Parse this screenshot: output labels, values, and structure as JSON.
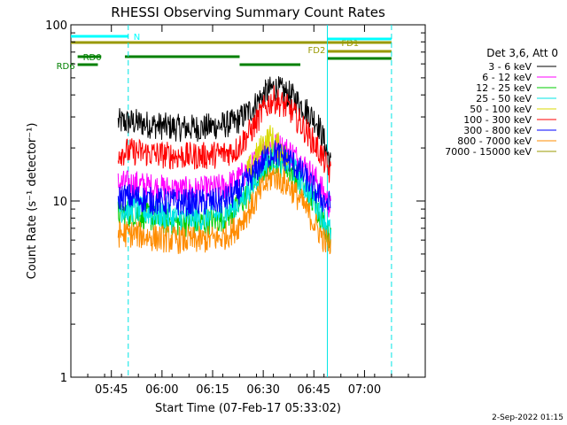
{
  "chart_data": {
    "type": "line",
    "title": "RHESSI Observing Summary Count Rates",
    "xlabel": "Start Time (07-Feb-17 05:33:02)",
    "ylabel": "Count Rate (s⁻¹ detector⁻¹)",
    "yscale": "log",
    "ylim": [
      1,
      100
    ],
    "xlim": [
      "05:33",
      "07:18"
    ],
    "x_ticks": [
      "05:45",
      "06:00",
      "06:15",
      "06:30",
      "06:45",
      "07:00"
    ],
    "y_ticks": [
      "1",
      "10",
      "100"
    ],
    "legend_title": "Det 3,6, Att 0",
    "legend_position": "right",
    "footer_date": "2-Sep-2022 01:15",
    "series": [
      {
        "name": "3 - 6 keV",
        "color": "#000000",
        "x": [
          "05:47",
          "05:52",
          "05:57",
          "06:05",
          "06:12",
          "06:18",
          "06:22",
          "06:27",
          "06:30",
          "06:33",
          "06:38",
          "06:42",
          "06:46",
          "06:48",
          "06:50"
        ],
        "values": [
          28,
          28,
          27,
          26,
          26,
          27,
          28,
          34,
          40,
          44,
          40,
          34,
          28,
          22,
          16
        ]
      },
      {
        "name": "6 - 12 keV",
        "color": "#ff00ff",
        "x": [
          "05:47",
          "05:52",
          "05:57",
          "06:05",
          "06:12",
          "06:18",
          "06:22",
          "06:27",
          "06:30",
          "06:33",
          "06:38",
          "06:42",
          "06:46",
          "06:48",
          "06:50"
        ],
        "values": [
          12.5,
          12.5,
          12,
          11.5,
          11.5,
          12,
          13,
          16,
          19,
          21,
          19,
          16,
          13,
          11,
          9
        ]
      },
      {
        "name": "12 - 25 keV",
        "color": "#00cc00",
        "x": [
          "05:47",
          "05:52",
          "05:57",
          "06:05",
          "06:12",
          "06:18",
          "06:22",
          "06:27",
          "06:30",
          "06:33",
          "06:38",
          "06:42",
          "06:46",
          "06:48",
          "06:50"
        ],
        "values": [
          8.5,
          8.5,
          8,
          7.5,
          7.5,
          8,
          9,
          12,
          15,
          17,
          15,
          12,
          9,
          7.5,
          6
        ]
      },
      {
        "name": "25 - 50 keV",
        "color": "#00e5e5",
        "x": [
          "05:47",
          "05:52",
          "05:57",
          "06:05",
          "06:12",
          "06:18",
          "06:22",
          "06:27",
          "06:30",
          "06:33",
          "06:38",
          "06:42",
          "06:46",
          "06:48",
          "06:50"
        ],
        "values": [
          9,
          9,
          8.5,
          8,
          8,
          8.5,
          9.5,
          12.5,
          16,
          18,
          16,
          12.5,
          9.5,
          8,
          6.5
        ]
      },
      {
        "name": "50 - 100 keV",
        "color": "#d9d900",
        "x": [
          "06:25",
          "06:28",
          "06:30",
          "06:32",
          "06:35",
          "06:38"
        ],
        "values": [
          14,
          18,
          21,
          23,
          20,
          16
        ]
      },
      {
        "name": "100 - 300 keV",
        "color": "#ff0000",
        "x": [
          "05:47",
          "05:52",
          "05:57",
          "06:05",
          "06:12",
          "06:18",
          "06:22",
          "06:27",
          "06:30",
          "06:33",
          "06:38",
          "06:42",
          "06:46",
          "06:48",
          "06:50"
        ],
        "values": [
          19,
          19,
          18.5,
          18,
          18,
          18.5,
          19.5,
          26,
          33,
          38,
          33,
          26,
          20,
          17,
          14
        ]
      },
      {
        "name": "300 - 800 keV",
        "color": "#0000ff",
        "x": [
          "05:47",
          "05:52",
          "05:57",
          "06:05",
          "06:12",
          "06:18",
          "06:22",
          "06:27",
          "06:30",
          "06:33",
          "06:38",
          "06:42",
          "06:46",
          "06:48",
          "06:50"
        ],
        "values": [
          10.5,
          10.5,
          10,
          9.8,
          9.8,
          10,
          11,
          14,
          17,
          19,
          17,
          14,
          11,
          10,
          9.5
        ]
      },
      {
        "name": "800 - 7000 keV",
        "color": "#ff8c00",
        "x": [
          "05:47",
          "05:52",
          "05:57",
          "06:05",
          "06:12",
          "06:18",
          "06:22",
          "06:27",
          "06:30",
          "06:33",
          "06:38",
          "06:42",
          "06:46",
          "06:48",
          "06:50"
        ],
        "values": [
          6.5,
          6.5,
          6.2,
          6,
          6,
          6.2,
          7,
          9.5,
          12,
          14,
          12,
          9.5,
          7,
          6,
          5.5
        ]
      },
      {
        "name": "7000 - 15000 keV",
        "color": "#999900",
        "x": [],
        "values": []
      }
    ],
    "flags": [
      {
        "label": "N",
        "color": "#00ffff",
        "start": "05:33",
        "end": "05:50"
      },
      {
        "label": "FD1",
        "color": "#999900",
        "start": "05:33",
        "end": "07:08"
      },
      {
        "label": "RD0",
        "color": "#008000",
        "start": "05:35",
        "end": "05:42"
      },
      {
        "label": "RD0",
        "color": "#008000",
        "start": "05:49",
        "end": "06:23"
      },
      {
        "label": "RD6",
        "color": "#008000",
        "start": "05:35",
        "end": "05:41"
      },
      {
        "label": "RD6",
        "color": "#008000",
        "start": "06:23",
        "end": "06:41"
      },
      {
        "label": "FD2",
        "color": "#999900",
        "start": "06:49",
        "end": "07:08"
      },
      {
        "label": "",
        "color": "#008000",
        "start": "06:49",
        "end": "07:08"
      },
      {
        "label": "",
        "color": "#00ffff",
        "start": "06:49",
        "end": "07:08"
      }
    ],
    "vlines": [
      {
        "time": "05:50",
        "color": "#00e5e5",
        "dashed": true
      },
      {
        "time": "07:08",
        "color": "#00e5e5",
        "dashed": true
      },
      {
        "time": "06:49",
        "color": "#00e5e5",
        "dashed": false
      }
    ]
  }
}
